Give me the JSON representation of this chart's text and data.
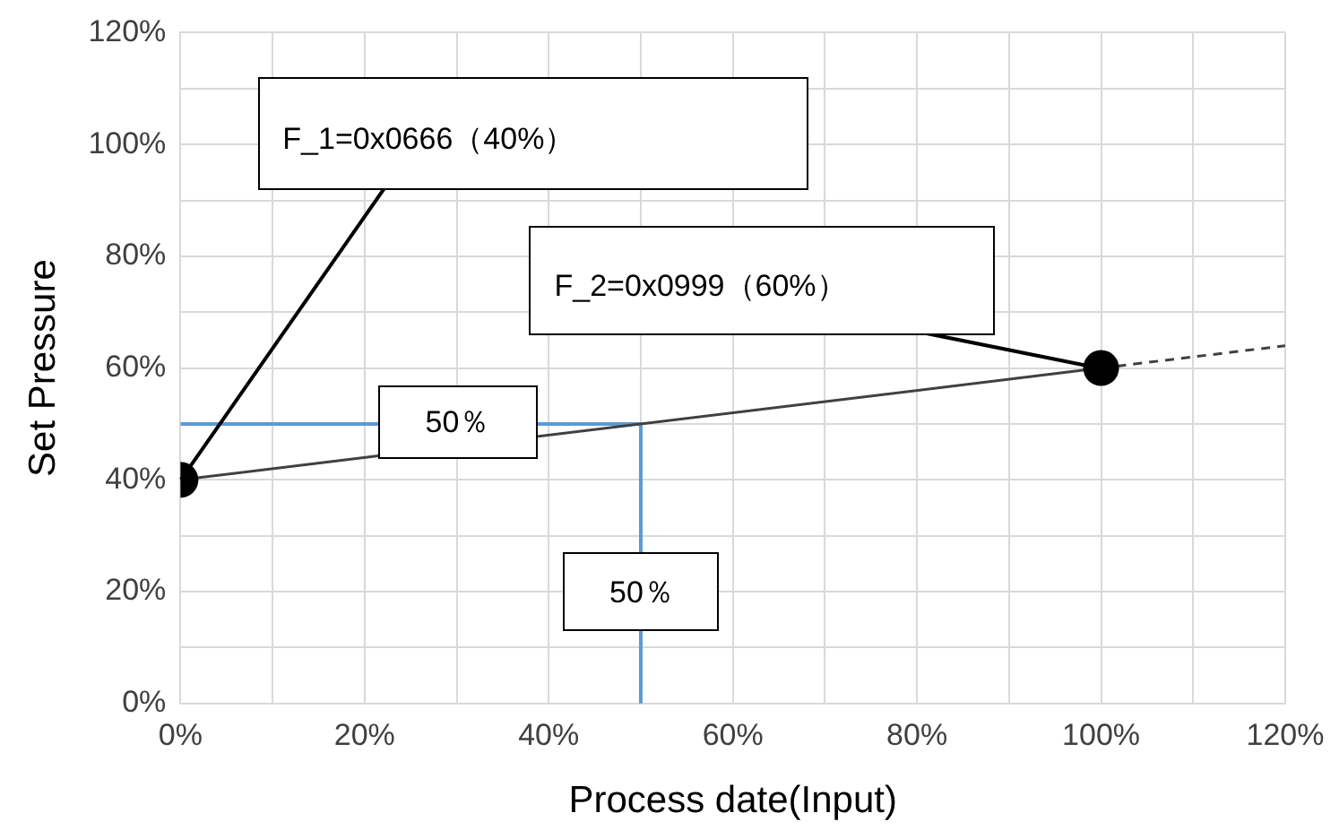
{
  "chart_data": {
    "type": "line",
    "xlabel": "Process date(Input)",
    "ylabel": "Set Pressure",
    "xlim": [
      0,
      120
    ],
    "ylim": [
      0,
      120
    ],
    "xticks": [
      {
        "value": 0,
        "label": "0%"
      },
      {
        "value": 10,
        "label": null
      },
      {
        "value": 20,
        "label": "20%"
      },
      {
        "value": 30,
        "label": null
      },
      {
        "value": 40,
        "label": "40%"
      },
      {
        "value": 50,
        "label": null
      },
      {
        "value": 60,
        "label": "60%"
      },
      {
        "value": 70,
        "label": null
      },
      {
        "value": 80,
        "label": "80%"
      },
      {
        "value": 90,
        "label": null
      },
      {
        "value": 100,
        "label": "100%"
      },
      {
        "value": 110,
        "label": null
      },
      {
        "value": 120,
        "label": "120%"
      }
    ],
    "yticks": [
      {
        "value": 0,
        "label": "0%"
      },
      {
        "value": 10,
        "label": null
      },
      {
        "value": 20,
        "label": "20%"
      },
      {
        "value": 30,
        "label": null
      },
      {
        "value": 40,
        "label": "40%"
      },
      {
        "value": 50,
        "label": null
      },
      {
        "value": 60,
        "label": "60%"
      },
      {
        "value": 70,
        "label": null
      },
      {
        "value": 80,
        "label": "80%"
      },
      {
        "value": 90,
        "label": null
      },
      {
        "value": 100,
        "label": "100%"
      },
      {
        "value": 110,
        "label": null
      },
      {
        "value": 120,
        "label": "120%"
      }
    ],
    "grid": true,
    "legend": false,
    "series": [
      {
        "type": "line",
        "color": "#404040",
        "x": [
          0,
          100
        ],
        "values": [
          40,
          60
        ],
        "marker": "circle",
        "line_style": "solid"
      },
      {
        "type": "line",
        "color": "#404040",
        "x": [
          100,
          120
        ],
        "values": [
          60,
          64
        ],
        "marker": "none",
        "line_style": "dashed"
      },
      {
        "type": "line",
        "color": "#5b9bd5",
        "x": [
          0,
          50,
          50
        ],
        "values": [
          50,
          50,
          0
        ],
        "marker": "none",
        "line_style": "solid"
      }
    ],
    "annotations": [
      {
        "text": "F_1=0x0666（40%）",
        "x": 0,
        "y": 40
      },
      {
        "text": "F_2=0x0999（60%）",
        "x": 100,
        "y": 60
      },
      {
        "text": "50％",
        "x": 30,
        "y": 50
      },
      {
        "text": "50％",
        "x": 50,
        "y": 20
      }
    ]
  }
}
